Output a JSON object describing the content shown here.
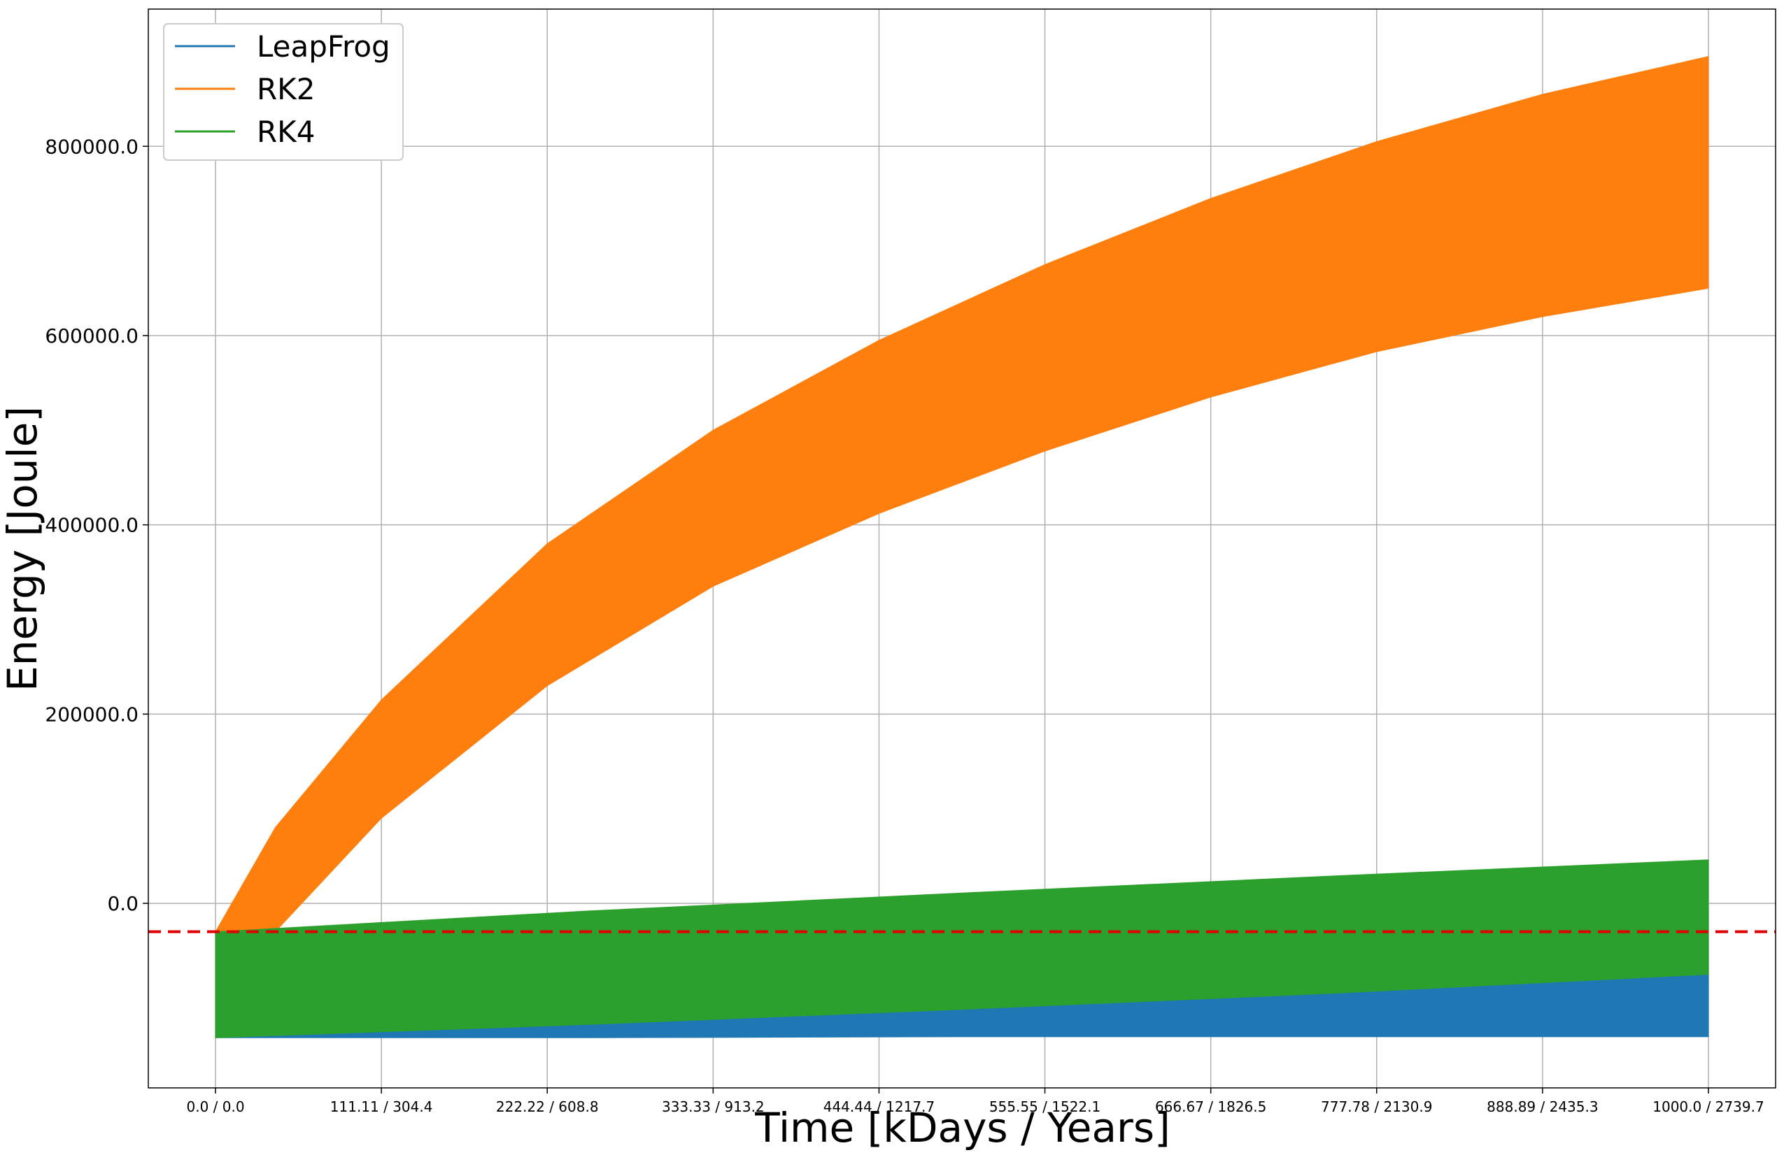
{
  "chart_data": {
    "type": "area",
    "title": "",
    "xlabel": "Time [kDays / Years]",
    "ylabel": "Energy [Joule]",
    "xlim": [
      -45,
      1045
    ],
    "ylim": [
      -195000,
      945000
    ],
    "grid": true,
    "legend_position": "top-left",
    "x_ticks": [
      {
        "value": 0,
        "label": "0.0 / 0.0"
      },
      {
        "value": 111.11,
        "label": "111.11 / 304.4"
      },
      {
        "value": 222.22,
        "label": "222.22 / 608.8"
      },
      {
        "value": 333.33,
        "label": "333.33 / 913.2"
      },
      {
        "value": 444.44,
        "label": "444.44 / 1217.7"
      },
      {
        "value": 555.55,
        "label": "555.55 / 1522.1"
      },
      {
        "value": 666.67,
        "label": "666.67 / 1826.5"
      },
      {
        "value": 777.78,
        "label": "777.78 / 2130.9"
      },
      {
        "value": 888.89,
        "label": "888.89 / 2435.3"
      },
      {
        "value": 1000.0,
        "label": "1000.0 / 2739.7"
      }
    ],
    "y_ticks": [
      {
        "value": 0,
        "label": "0.0"
      },
      {
        "value": 200000,
        "label": "200000.0"
      },
      {
        "value": 400000,
        "label": "400000.0"
      },
      {
        "value": 600000,
        "label": "600000.0"
      },
      {
        "value": 800000,
        "label": "800000.0"
      }
    ],
    "reference_line": {
      "y": -30000,
      "color": "#e00000",
      "style": "dashed"
    },
    "series": [
      {
        "name": "LeapFrog",
        "color": "#1f77b4",
        "x": [
          0,
          250,
          500,
          750,
          1000
        ],
        "upper": [
          -142000,
          -128000,
          -112000,
          -95000,
          -75000
        ],
        "lower": [
          -142000,
          -142000,
          -141000,
          -141000,
          -141000
        ]
      },
      {
        "name": "RK2",
        "color": "#ff7f0e",
        "x": [
          0,
          40,
          111.11,
          222.22,
          333.33,
          444.44,
          555.55,
          666.67,
          777.78,
          888.89,
          1000
        ],
        "upper": [
          -30000,
          80000,
          215000,
          380000,
          500000,
          595000,
          675000,
          745000,
          805000,
          855000,
          895000
        ],
        "lower": [
          -30000,
          -30000,
          90000,
          230000,
          335000,
          412000,
          478000,
          535000,
          583000,
          620000,
          650000
        ]
      },
      {
        "name": "RK4",
        "color": "#2ca02c",
        "x": [
          0,
          250,
          500,
          750,
          1000
        ],
        "upper": [
          -30000,
          -8000,
          11000,
          29000,
          46000
        ],
        "lower": [
          -142000,
          -128000,
          -112000,
          -95000,
          -75000
        ]
      }
    ]
  }
}
